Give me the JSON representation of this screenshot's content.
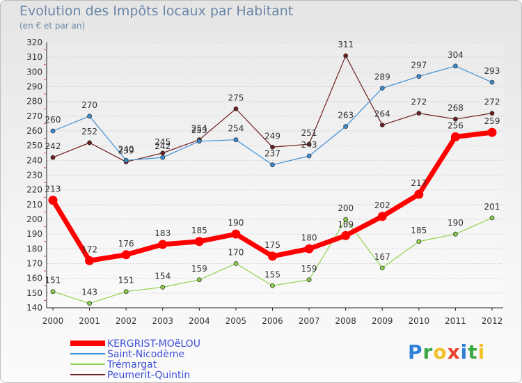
{
  "chart_data": {
    "type": "line",
    "title": "Evolution des Impôts locaux par Habitant",
    "subtitle": "(en € et par an)",
    "xlabel": "",
    "ylabel": "",
    "ylim": [
      140,
      320
    ],
    "y_ticks": [
      140,
      150,
      160,
      170,
      180,
      190,
      200,
      210,
      220,
      230,
      240,
      250,
      260,
      270,
      280,
      290,
      300,
      310,
      320
    ],
    "categories": [
      "2000",
      "2001",
      "2002",
      "2003",
      "2004",
      "2005",
      "2006",
      "2007",
      "2008",
      "2009",
      "2010",
      "2011",
      "2012"
    ],
    "grid": "horizontal",
    "legend_position": "bottom-left",
    "series": [
      {
        "name": "KERGRIST-MOëLOU",
        "color": "#ff0000",
        "values": [
          213,
          172,
          176,
          183,
          185,
          190,
          175,
          180,
          189,
          202,
          217,
          256,
          259
        ]
      },
      {
        "name": "Saint-Nicodème",
        "color": "#3c8fd6",
        "values": [
          260,
          270,
          240,
          242,
          253,
          254,
          237,
          243,
          263,
          289,
          297,
          304,
          293
        ]
      },
      {
        "name": "Trémargat",
        "color": "#8ed14a",
        "values": [
          151,
          143,
          151,
          154,
          159,
          170,
          155,
          159,
          200,
          167,
          185,
          190,
          201
        ]
      },
      {
        "name": "Peumerit-Quintin",
        "color": "#6e1e1e",
        "values": [
          242,
          252,
          239,
          245,
          254,
          275,
          249,
          251,
          311,
          264,
          272,
          268,
          272
        ]
      }
    ]
  },
  "logo": {
    "letters": [
      "P",
      "r",
      "o",
      "x",
      "i",
      "t",
      "i"
    ],
    "colors": [
      "#2f7fd8",
      "#3aa843",
      "#f2c02a",
      "#e8432e",
      "#2f7fd8",
      "#3aa843",
      "#f2c02a"
    ]
  }
}
